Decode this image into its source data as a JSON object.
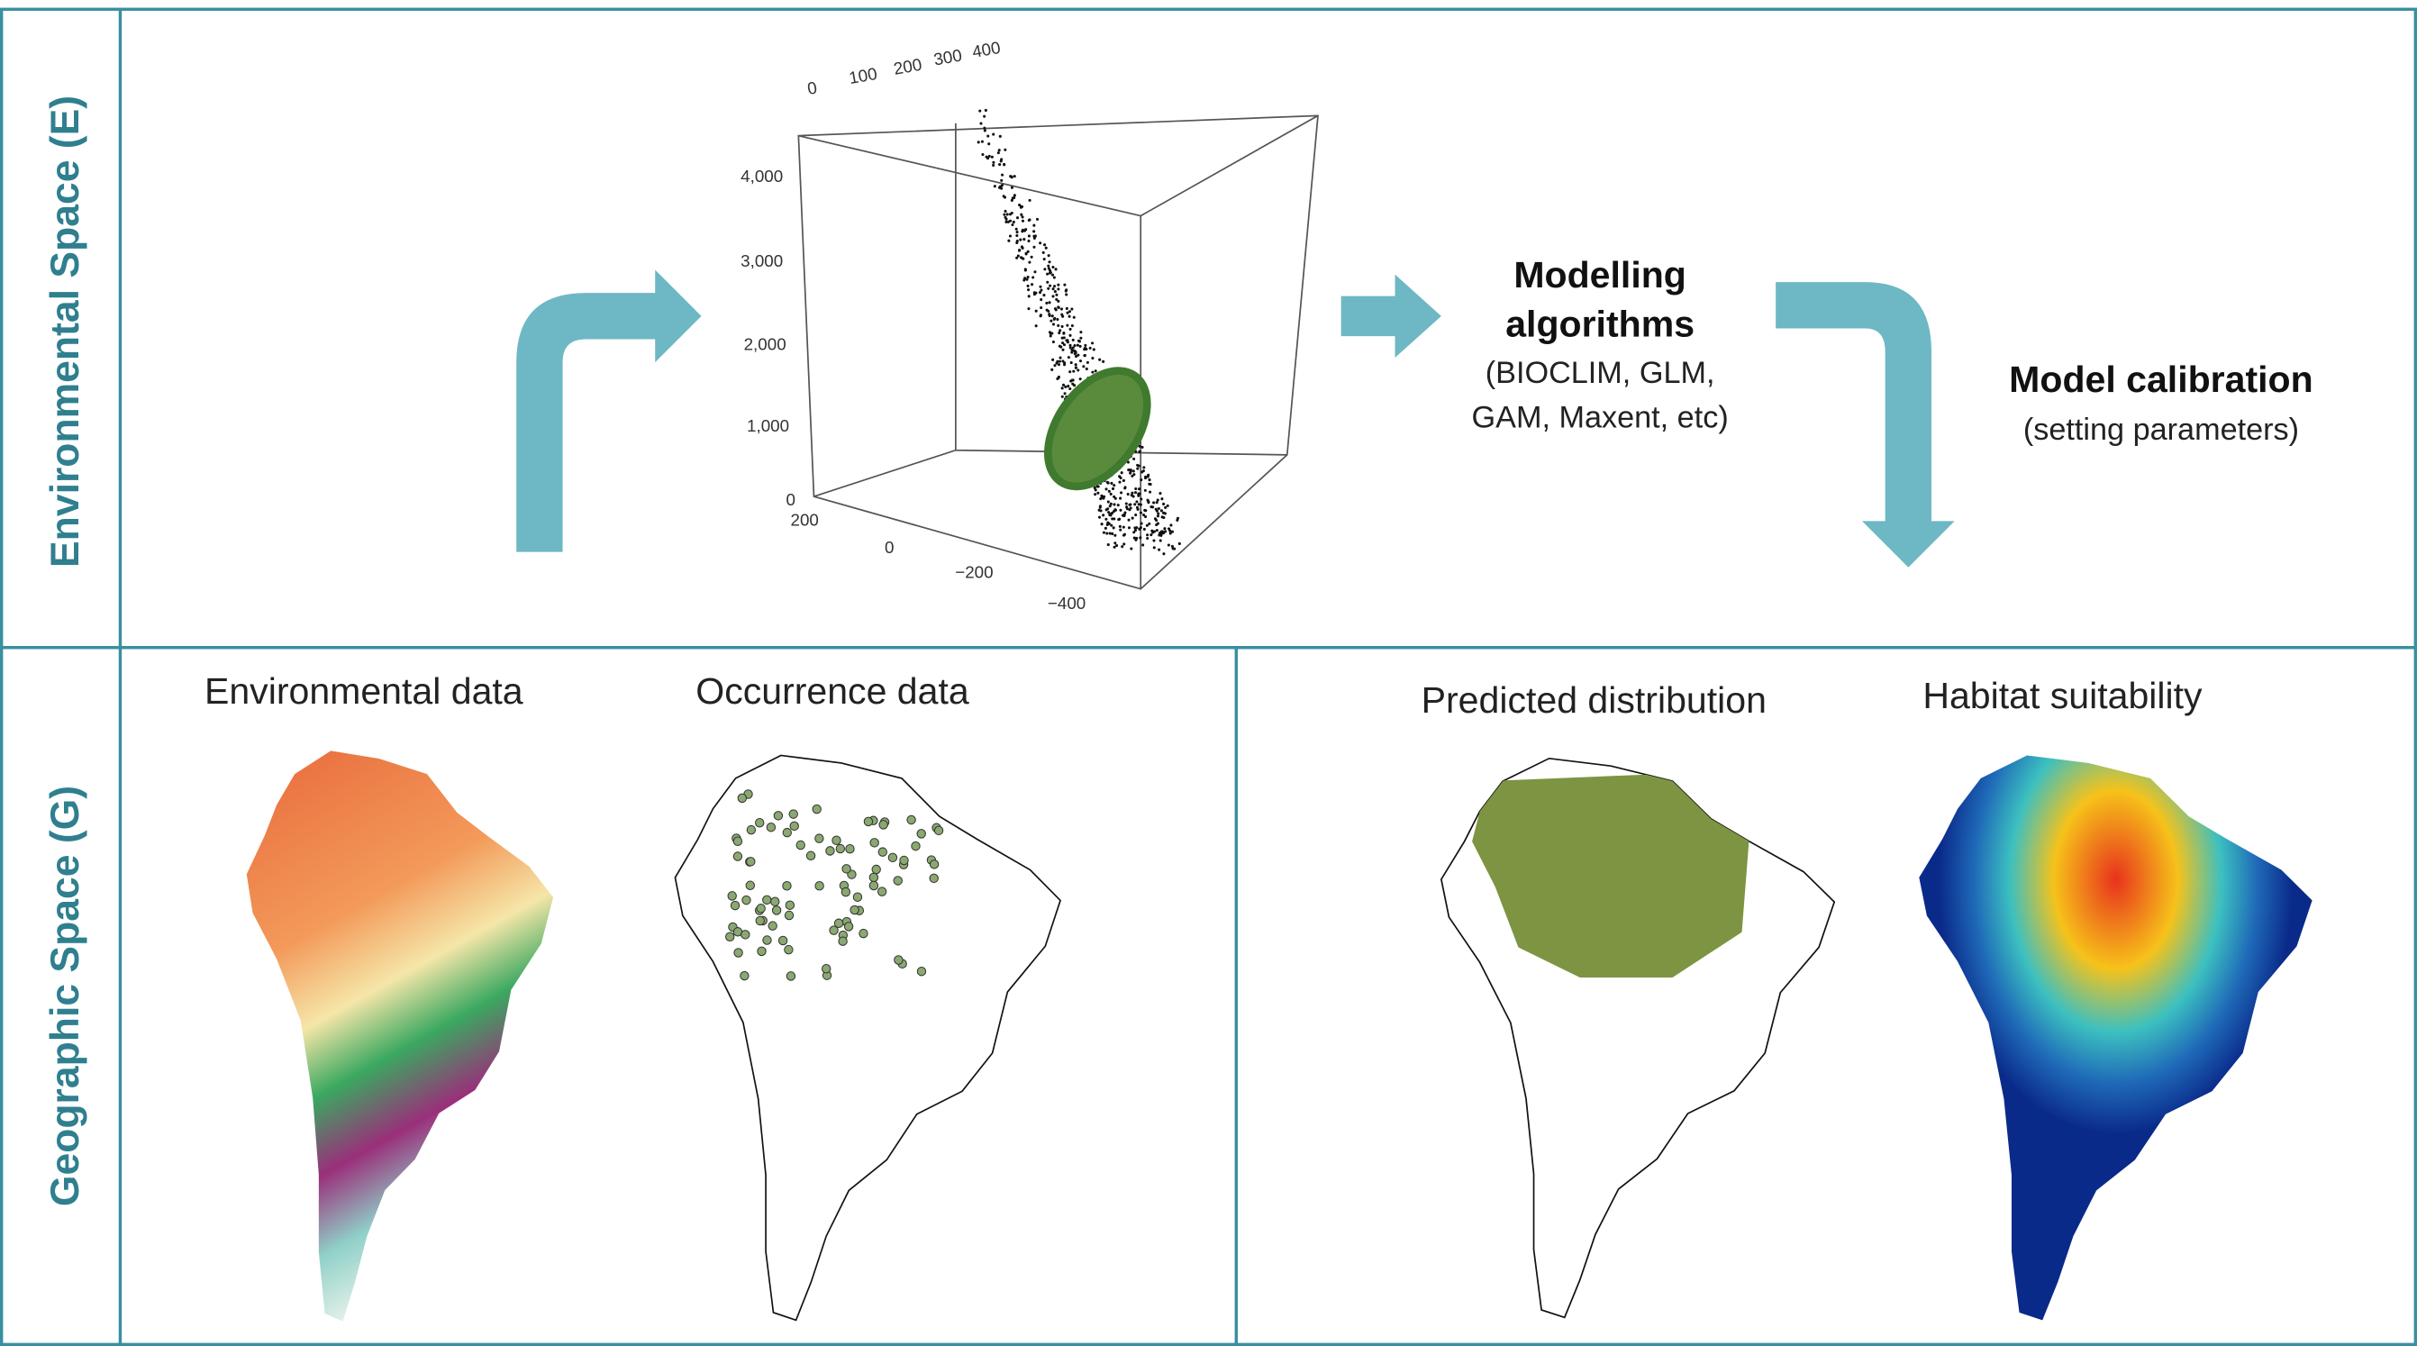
{
  "environmental_space": {
    "label": "Environmental Space (E)",
    "plot": {
      "x_ticks": [
        "0",
        "100",
        "200",
        "300",
        "400"
      ],
      "y_ticks": [
        "4,000",
        "3,000",
        "2,000",
        "1,000",
        "0"
      ],
      "z_ticks": [
        "200",
        "0",
        "−200",
        "−400"
      ]
    },
    "modelling": {
      "title": [
        "Modelling",
        "algorithms"
      ],
      "details": [
        "(BIOCLIM, GLM,",
        "GAM, Maxent, etc)"
      ]
    },
    "calibration": {
      "title": "Model calibration",
      "detail": "(setting parameters)"
    }
  },
  "geographic_space": {
    "label": "Geographic Space (G)",
    "maps": [
      "Environmental data",
      "Occurrence data",
      "Predicted distribution",
      "Habitat suitability"
    ]
  }
}
